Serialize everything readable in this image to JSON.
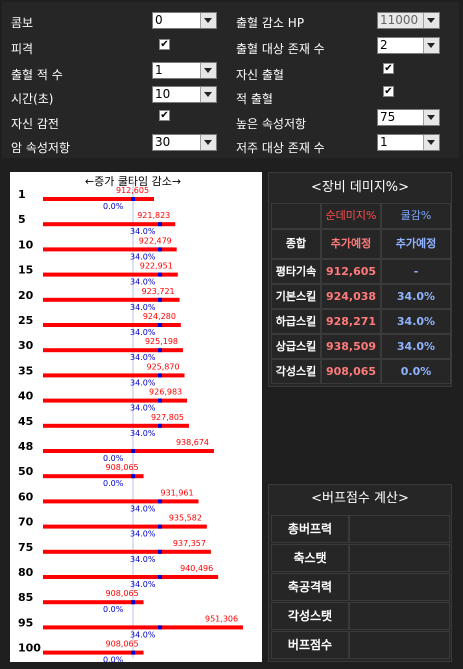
{
  "settings": {
    "combo_label": "콤보",
    "combo_value": "0",
    "hit_label": "피격",
    "hit_checked": "✔",
    "bleed_stack_label": "출혈 적 수",
    "bleed_stack_value": "1",
    "time_label": "시간(초)",
    "time_value": "10",
    "self_sense_label": "자신 감전",
    "self_sense_checked": "✔",
    "dark_res_label": "암 속성저항",
    "dark_res_value": "30",
    "bleed_hp_label": "출혈 감소 HP",
    "bleed_hp_value": "11000",
    "bleed_target_label": "출혈 대상 존재 수",
    "bleed_target_value": "2",
    "self_bleed_label": "자신 출혈",
    "self_bleed_checked": "✔",
    "enemy_bleed_label": "적 출혈",
    "enemy_bleed_checked": "✔",
    "high_res_label": "높은 속성저항",
    "high_res_value": "75",
    "curse_target_label": "저주 대상 존재 수",
    "curse_target_value": "1"
  },
  "chart_data": {
    "type": "bar",
    "title": "←증가  쿨타임  감소→",
    "categories": [
      "1",
      "5",
      "10",
      "15",
      "20",
      "25",
      "30",
      "35",
      "40",
      "45",
      "48",
      "50",
      "60",
      "70",
      "75",
      "80",
      "85",
      "95",
      "100"
    ],
    "damage_values": [
      912605,
      921823,
      922479,
      922951,
      923721,
      924280,
      925198,
      925870,
      926983,
      927805,
      938674,
      908065,
      931961,
      935582,
      937357,
      940496,
      908065,
      951306,
      908065
    ],
    "damage_labels": [
      "912,605",
      "921,823",
      "922,479",
      "922,951",
      "923,721",
      "924,280",
      "925,198",
      "925,870",
      "926,983",
      "927,805",
      "938,674",
      "908,065",
      "931,961",
      "935,582",
      "937,357",
      "940,496",
      "908,065",
      "951,306",
      "908,065"
    ],
    "cooldown_values": [
      0.0,
      34.0,
      34.0,
      34.0,
      34.0,
      34.0,
      34.0,
      34.0,
      34.0,
      34.0,
      0.0,
      0.0,
      34.0,
      34.0,
      34.0,
      34.0,
      0.0,
      34.0,
      0.0
    ],
    "cooldown_labels": [
      "0.0%",
      "34.0%",
      "34.0%",
      "34.0%",
      "34.0%",
      "34.0%",
      "34.0%",
      "34.0%",
      "34.0%",
      "34.0%",
      "0.0%",
      "0.0%",
      "34.0%",
      "34.0%",
      "34.0%",
      "34.0%",
      "0.0%",
      "34.0%",
      "0.0%"
    ],
    "colors": {
      "bar": "#ff0000",
      "marker": "#0000cc",
      "label_red": "#ff0000",
      "label_blue": "#0000cc"
    }
  },
  "damage_table": {
    "title": "<장비 데미지%>",
    "header_damage": "순데미지%",
    "header_cooldown": "쿨감%",
    "rows": [
      {
        "label": "종합",
        "damage": "추가예정",
        "cooldown": "추가예정"
      },
      {
        "label": "평타기속",
        "damage": "912,605",
        "cooldown": "-"
      },
      {
        "label": "기본스킬",
        "damage": "924,038",
        "cooldown": "34.0%"
      },
      {
        "label": "하급스킬",
        "damage": "928,271",
        "cooldown": "34.0%"
      },
      {
        "label": "상급스킬",
        "damage": "938,509",
        "cooldown": "34.0%"
      },
      {
        "label": "각성스킬",
        "damage": "908,065",
        "cooldown": "0.0%"
      }
    ],
    "colors": {
      "damage": "#ff7b7b",
      "cooldown": "#8fb3ff",
      "header_damage": "#ff4d4d",
      "header_cooldown": "#7aa7ff"
    }
  },
  "buff_table": {
    "title": "<버프점수 계산>",
    "rows": [
      "총버프력",
      "축스탯",
      "축공격력",
      "각성스탯",
      "버프점수"
    ]
  }
}
